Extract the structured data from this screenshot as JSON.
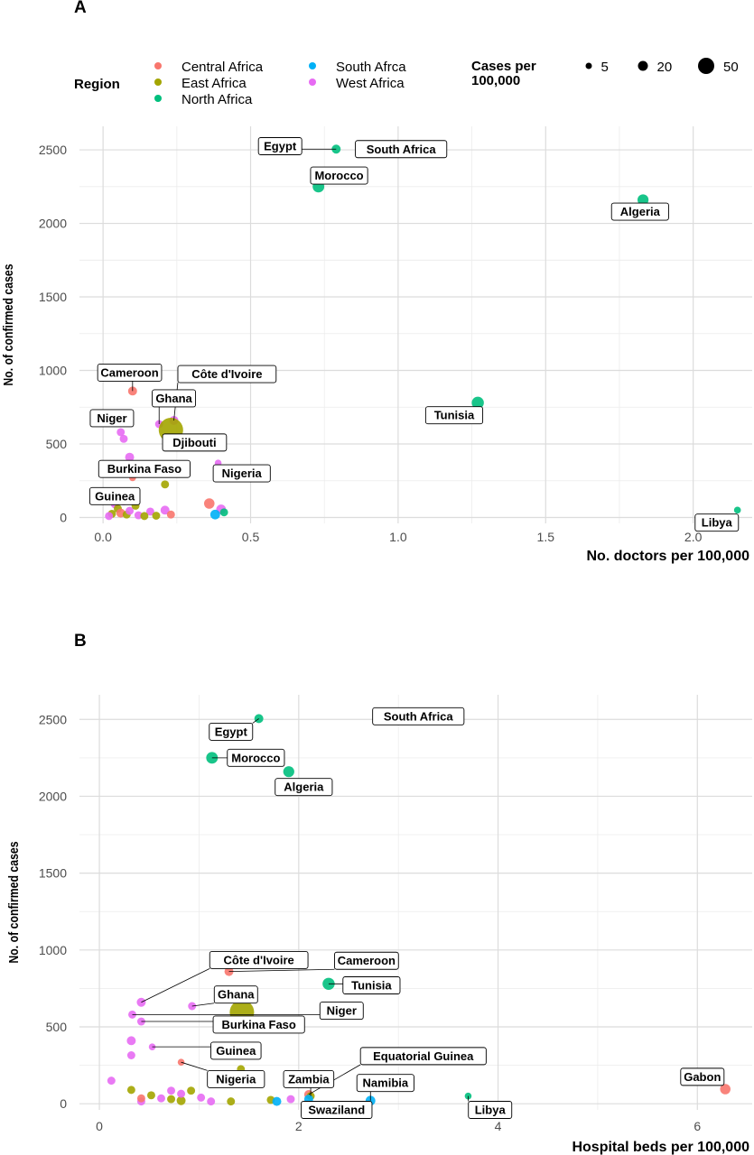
{
  "legend": {
    "region_title": "Region",
    "regions": [
      {
        "name": "Central Africa",
        "color": "#f8766d"
      },
      {
        "name": "East Africa",
        "color": "#a3a500"
      },
      {
        "name": "North Africa",
        "color": "#00bf7d"
      },
      {
        "name": "South Afrca",
        "color": "#00b0f6"
      },
      {
        "name": "West Africa",
        "color": "#e76bf3"
      }
    ],
    "size_title_line1": "Cases per",
    "size_title_line2": "100,000",
    "sizes": [
      {
        "label": "5",
        "value": 5
      },
      {
        "label": "20",
        "value": 20
      },
      {
        "label": "50",
        "value": 50
      }
    ]
  },
  "chart_data": [
    {
      "type": "scatter",
      "panel_tag": "A",
      "xlabel": "No. doctors per 100,000",
      "ylabel": "No. of confirmed cases",
      "xlim": [
        -0.08,
        2.2
      ],
      "ylim": [
        -40,
        2660
      ],
      "xticks": [
        {
          "v": 0,
          "label": "0.0"
        },
        {
          "v": 0.5,
          "label": "0.5"
        },
        {
          "v": 1,
          "label": "1.0"
        },
        {
          "v": 1.5,
          "label": "1.5"
        },
        {
          "v": 2,
          "label": "2.0"
        }
      ],
      "yticks": [
        {
          "v": 0,
          "label": "0"
        },
        {
          "v": 500,
          "label": "500"
        },
        {
          "v": 1000,
          "label": "1000"
        },
        {
          "v": 1500,
          "label": "1500"
        },
        {
          "v": 2000,
          "label": "2000"
        },
        {
          "v": 2500,
          "label": "2500"
        }
      ],
      "grid": true,
      "points": [
        {
          "x": 0.79,
          "y": 2505,
          "region": "North Africa",
          "cases": 3,
          "label": "Egypt"
        },
        {
          "x": 0.91,
          "y": 2505,
          "region": "South Afrca",
          "cases": 5,
          "label": "South Africa"
        },
        {
          "x": 0.73,
          "y": 2250,
          "region": "North Africa",
          "cases": 7,
          "label": "Morocco"
        },
        {
          "x": 1.83,
          "y": 2160,
          "region": "North Africa",
          "cases": 6,
          "label": "Algeria"
        },
        {
          "x": 1.27,
          "y": 780,
          "region": "North Africa",
          "cases": 8,
          "label": "Tunisia"
        },
        {
          "x": 2.15,
          "y": 50,
          "region": "North Africa",
          "cases": 1,
          "label": "Libya"
        },
        {
          "x": 0.1,
          "y": 860,
          "region": "Central Africa",
          "cases": 3,
          "label": "Cameroon"
        },
        {
          "x": 0.24,
          "y": 660,
          "region": "West Africa",
          "cases": 3,
          "label": "Côte d'Ivoire"
        },
        {
          "x": 0.19,
          "y": 635,
          "region": "West Africa",
          "cases": 2,
          "label": "Ghana"
        },
        {
          "x": 0.23,
          "y": 595,
          "region": "East Africa",
          "cases": 50,
          "label": "Djibouti"
        },
        {
          "x": 0.06,
          "y": 580,
          "region": "West Africa",
          "cases": 2,
          "label": "Niger"
        },
        {
          "x": 0.07,
          "y": 535,
          "region": "West Africa",
          "cases": 2,
          "label": ""
        },
        {
          "x": 0.09,
          "y": 410,
          "region": "West Africa",
          "cases": 3,
          "label": "Burkina Faso"
        },
        {
          "x": 0.39,
          "y": 370,
          "region": "West Africa",
          "cases": 1,
          "label": "Nigeria"
        },
        {
          "x": 0.1,
          "y": 270,
          "region": "Central Africa",
          "cases": 1,
          "label": ""
        },
        {
          "x": 0.21,
          "y": 225,
          "region": "East Africa",
          "cases": 2,
          "label": ""
        },
        {
          "x": 0.08,
          "y": 160,
          "region": "East Africa",
          "cases": 2,
          "label": "Guinea"
        },
        {
          "x": 0.36,
          "y": 95,
          "region": "Central Africa",
          "cases": 5,
          "label": ""
        },
        {
          "x": 0.4,
          "y": 55,
          "region": "West Africa",
          "cases": 4,
          "label": ""
        },
        {
          "x": 0.41,
          "y": 35,
          "region": "North Africa",
          "cases": 2,
          "label": ""
        },
        {
          "x": 0.38,
          "y": 20,
          "region": "South Afrca",
          "cases": 4,
          "label": ""
        },
        {
          "x": 0.04,
          "y": 90,
          "region": "West Africa",
          "cases": 2,
          "label": ""
        },
        {
          "x": 0.05,
          "y": 60,
          "region": "East Africa",
          "cases": 2,
          "label": ""
        },
        {
          "x": 0.06,
          "y": 30,
          "region": "Central Africa",
          "cases": 3,
          "label": ""
        },
        {
          "x": 0.08,
          "y": 20,
          "region": "East Africa",
          "cases": 2,
          "label": ""
        },
        {
          "x": 0.09,
          "y": 45,
          "region": "West Africa",
          "cases": 2,
          "label": ""
        },
        {
          "x": 0.11,
          "y": 80,
          "region": "East Africa",
          "cases": 2,
          "label": ""
        },
        {
          "x": 0.12,
          "y": 15,
          "region": "West Africa",
          "cases": 2,
          "label": ""
        },
        {
          "x": 0.03,
          "y": 25,
          "region": "East Africa",
          "cases": 2,
          "label": ""
        },
        {
          "x": 0.02,
          "y": 10,
          "region": "West Africa",
          "cases": 2,
          "label": ""
        },
        {
          "x": 0.07,
          "y": 110,
          "region": "West Africa",
          "cases": 2,
          "label": ""
        },
        {
          "x": 0.16,
          "y": 40,
          "region": "West Africa",
          "cases": 2,
          "label": ""
        },
        {
          "x": 0.18,
          "y": 12,
          "region": "East Africa",
          "cases": 2,
          "label": ""
        },
        {
          "x": 0.21,
          "y": 50,
          "region": "West Africa",
          "cases": 3,
          "label": ""
        },
        {
          "x": 0.23,
          "y": 20,
          "region": "Central Africa",
          "cases": 2,
          "label": ""
        },
        {
          "x": 0.14,
          "y": 10,
          "region": "East Africa",
          "cases": 2,
          "label": ""
        }
      ],
      "labels": [
        {
          "text": "Egypt",
          "point": 0,
          "lx": 0.6,
          "ly": 2525
        },
        {
          "text": "South Africa",
          "point": 1,
          "lx": 1.01,
          "ly": 2505
        },
        {
          "text": "Morocco",
          "point": 2,
          "lx": 0.8,
          "ly": 2325
        },
        {
          "text": "Algeria",
          "point": 3,
          "lx": 1.82,
          "ly": 2080
        },
        {
          "text": "Tunisia",
          "point": 4,
          "lx": 1.19,
          "ly": 695
        },
        {
          "text": "Libya",
          "point": 5,
          "lx": 2.08,
          "ly": -35
        },
        {
          "text": "Cameroon",
          "point": 6,
          "lx": 0.09,
          "ly": 985
        },
        {
          "text": "Côte d'Ivoire",
          "point": 7,
          "lx": 0.42,
          "ly": 975
        },
        {
          "text": "Ghana",
          "point": 8,
          "lx": 0.24,
          "ly": 810
        },
        {
          "text": "Djibouti",
          "point": 9,
          "lx": 0.31,
          "ly": 510
        },
        {
          "text": "Niger",
          "point": 10,
          "lx": 0.03,
          "ly": 675
        },
        {
          "text": "Burkina Faso",
          "point": 12,
          "lx": 0.14,
          "ly": 330
        },
        {
          "text": "Nigeria",
          "point": 13,
          "lx": 0.47,
          "ly": 300
        },
        {
          "text": "Guinea",
          "point": 16,
          "lx": 0.04,
          "ly": 145
        }
      ]
    },
    {
      "type": "scatter",
      "panel_tag": "B",
      "xlabel": "Hospital beds per 100,000",
      "ylabel": "No. of confirmed cases",
      "xlim": [
        -0.2,
        6.55
      ],
      "ylim": [
        -40,
        2660
      ],
      "xticks": [
        {
          "v": 0,
          "label": "0"
        },
        {
          "v": 2,
          "label": "2"
        },
        {
          "v": 4,
          "label": "4"
        },
        {
          "v": 6,
          "label": "6"
        }
      ],
      "yticks": [
        {
          "v": 0,
          "label": "0"
        },
        {
          "v": 500,
          "label": "500"
        },
        {
          "v": 1000,
          "label": "1000"
        },
        {
          "v": 1500,
          "label": "1500"
        },
        {
          "v": 2000,
          "label": "2000"
        },
        {
          "v": 2500,
          "label": "2500"
        }
      ],
      "grid": true,
      "points": [
        {
          "x": 1.6,
          "y": 2505,
          "region": "North Africa",
          "cases": 3,
          "label": "Egypt"
        },
        {
          "x": 2.8,
          "y": 2505,
          "region": "South Afrca",
          "cases": 5,
          "label": "South Africa"
        },
        {
          "x": 1.13,
          "y": 2250,
          "region": "North Africa",
          "cases": 7,
          "label": "Morocco"
        },
        {
          "x": 1.9,
          "y": 2160,
          "region": "North Africa",
          "cases": 6,
          "label": "Algeria"
        },
        {
          "x": 2.3,
          "y": 780,
          "region": "North Africa",
          "cases": 8,
          "label": "Tunisia"
        },
        {
          "x": 3.7,
          "y": 50,
          "region": "North Africa",
          "cases": 1,
          "label": "Libya"
        },
        {
          "x": 1.3,
          "y": 860,
          "region": "Central Africa",
          "cases": 3,
          "label": "Cameroon"
        },
        {
          "x": 0.42,
          "y": 660,
          "region": "West Africa",
          "cases": 3,
          "label": "Côte d'Ivoire"
        },
        {
          "x": 0.93,
          "y": 635,
          "region": "West Africa",
          "cases": 2,
          "label": "Ghana"
        },
        {
          "x": 1.43,
          "y": 595,
          "region": "East Africa",
          "cases": 50,
          "label": ""
        },
        {
          "x": 0.33,
          "y": 580,
          "region": "West Africa",
          "cases": 2,
          "label": "Niger"
        },
        {
          "x": 0.42,
          "y": 535,
          "region": "West Africa",
          "cases": 2,
          "label": "Burkina Faso"
        },
        {
          "x": 0.32,
          "y": 410,
          "region": "West Africa",
          "cases": 3,
          "label": ""
        },
        {
          "x": 0.53,
          "y": 370,
          "region": "West Africa",
          "cases": 1,
          "label": "Guinea"
        },
        {
          "x": 0.82,
          "y": 270,
          "region": "Central Africa",
          "cases": 1,
          "label": "Nigeria"
        },
        {
          "x": 0.32,
          "y": 315,
          "region": "West Africa",
          "cases": 2,
          "label": ""
        },
        {
          "x": 1.42,
          "y": 225,
          "region": "East Africa",
          "cases": 2,
          "label": ""
        },
        {
          "x": 2.1,
          "y": 60,
          "region": "Central Africa",
          "cases": 3,
          "label": "Equatorial Guinea"
        },
        {
          "x": 2.12,
          "y": 50,
          "region": "East Africa",
          "cases": 2,
          "label": "Zambia"
        },
        {
          "x": 2.72,
          "y": 20,
          "region": "South Afrca",
          "cases": 4,
          "label": "Namibia"
        },
        {
          "x": 2.1,
          "y": 30,
          "region": "South Afrca",
          "cases": 3,
          "label": "Swaziland"
        },
        {
          "x": 6.28,
          "y": 95,
          "region": "Central Africa",
          "cases": 5,
          "label": "Gabon"
        },
        {
          "x": 0.12,
          "y": 150,
          "region": "West Africa",
          "cases": 2,
          "label": ""
        },
        {
          "x": 0.32,
          "y": 90,
          "region": "East Africa",
          "cases": 2,
          "label": ""
        },
        {
          "x": 0.42,
          "y": 15,
          "region": "West Africa",
          "cases": 2,
          "label": ""
        },
        {
          "x": 0.52,
          "y": 55,
          "region": "East Africa",
          "cases": 2,
          "label": ""
        },
        {
          "x": 0.62,
          "y": 35,
          "region": "West Africa",
          "cases": 2,
          "label": ""
        },
        {
          "x": 0.72,
          "y": 85,
          "region": "West Africa",
          "cases": 2,
          "label": ""
        },
        {
          "x": 0.82,
          "y": 20,
          "region": "East Africa",
          "cases": 3,
          "label": ""
        },
        {
          "x": 0.92,
          "y": 85,
          "region": "East Africa",
          "cases": 2,
          "label": ""
        },
        {
          "x": 1.02,
          "y": 40,
          "region": "West Africa",
          "cases": 2,
          "label": ""
        },
        {
          "x": 1.12,
          "y": 15,
          "region": "West Africa",
          "cases": 2,
          "label": ""
        },
        {
          "x": 1.32,
          "y": 15,
          "region": "East Africa",
          "cases": 2,
          "label": ""
        },
        {
          "x": 1.72,
          "y": 25,
          "region": "East Africa",
          "cases": 2,
          "label": ""
        },
        {
          "x": 1.78,
          "y": 15,
          "region": "South Afrca",
          "cases": 3,
          "label": ""
        },
        {
          "x": 1.92,
          "y": 30,
          "region": "West Africa",
          "cases": 2,
          "label": ""
        },
        {
          "x": 0.42,
          "y": 35,
          "region": "Central Africa",
          "cases": 2,
          "label": ""
        },
        {
          "x": 0.72,
          "y": 30,
          "region": "East Africa",
          "cases": 2,
          "label": ""
        },
        {
          "x": 0.82,
          "y": 65,
          "region": "West Africa",
          "cases": 2,
          "label": ""
        }
      ],
      "labels": [
        {
          "text": "Egypt",
          "point": 0,
          "lx": 1.32,
          "ly": 2420
        },
        {
          "text": "South Africa",
          "point": 1,
          "lx": 3.2,
          "ly": 2520
        },
        {
          "text": "Morocco",
          "point": 2,
          "lx": 1.57,
          "ly": 2250
        },
        {
          "text": "Algeria",
          "point": 3,
          "lx": 2.05,
          "ly": 2060
        },
        {
          "text": "Tunisia",
          "point": 4,
          "lx": 2.73,
          "ly": 770
        },
        {
          "text": "Libya",
          "point": 5,
          "lx": 3.92,
          "ly": -40
        },
        {
          "text": "Cameroon",
          "point": 6,
          "lx": 2.68,
          "ly": 930
        },
        {
          "text": "Côte d'Ivoire",
          "point": 7,
          "lx": 1.6,
          "ly": 935
        },
        {
          "text": "Ghana",
          "point": 8,
          "lx": 1.37,
          "ly": 710
        },
        {
          "text": "Niger",
          "point": 10,
          "lx": 2.43,
          "ly": 605
        },
        {
          "text": "Burkina Faso",
          "point": 11,
          "lx": 1.6,
          "ly": 515
        },
        {
          "text": "Guinea",
          "point": 13,
          "lx": 1.37,
          "ly": 345
        },
        {
          "text": "Nigeria",
          "point": 14,
          "lx": 1.37,
          "ly": 160
        },
        {
          "text": "Equatorial Guinea",
          "point": 17,
          "lx": 3.25,
          "ly": 310
        },
        {
          "text": "Zambia",
          "point": 18,
          "lx": 2.1,
          "ly": 160
        },
        {
          "text": "Namibia",
          "point": 19,
          "lx": 2.87,
          "ly": 135
        },
        {
          "text": "Swaziland",
          "point": 20,
          "lx": 2.38,
          "ly": -40
        },
        {
          "text": "Gabon",
          "point": 21,
          "lx": 6.05,
          "ly": 175
        }
      ]
    }
  ]
}
